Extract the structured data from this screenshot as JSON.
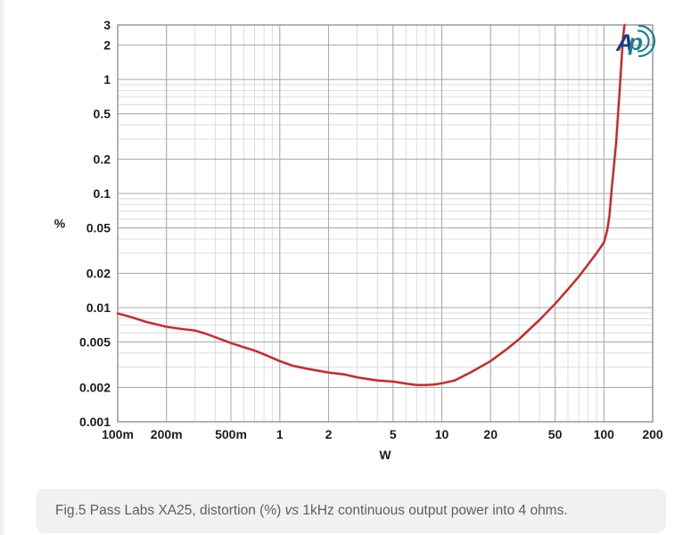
{
  "page": {
    "background": "#ffffff",
    "edge_strip_color": "#ededed"
  },
  "caption": {
    "prefix": "Fig.5 Pass Labs XA25, distortion (%) ",
    "italic": "vs",
    "suffix": " 1kHz continuous output power into 4 ohms.",
    "box_color": "#f1f1f2",
    "text_color": "#5b5f63"
  },
  "logo": {
    "name": "Audio Precision",
    "letter_a": "A",
    "letter_p": "p",
    "color_a": "#1a3e7e",
    "color_p": "#1f7e95"
  },
  "chart_data": {
    "type": "line",
    "title": "",
    "xlabel": "W",
    "ylabel": "%",
    "x_scale": "log",
    "y_scale": "log",
    "xlim": [
      0.1,
      200
    ],
    "ylim": [
      0.001,
      3
    ],
    "grid": "log major + minor, both axes",
    "legend": "none",
    "x_ticks": [
      {
        "v": 0.1,
        "label": "100m"
      },
      {
        "v": 0.2,
        "label": "200m"
      },
      {
        "v": 0.5,
        "label": "500m"
      },
      {
        "v": 1,
        "label": "1"
      },
      {
        "v": 2,
        "label": "2"
      },
      {
        "v": 5,
        "label": "5"
      },
      {
        "v": 10,
        "label": "10"
      },
      {
        "v": 20,
        "label": "20"
      },
      {
        "v": 50,
        "label": "50"
      },
      {
        "v": 100,
        "label": "100"
      },
      {
        "v": 200,
        "label": "200"
      }
    ],
    "y_ticks": [
      {
        "v": 3,
        "label": "3"
      },
      {
        "v": 2,
        "label": "2"
      },
      {
        "v": 1,
        "label": "1"
      },
      {
        "v": 0.5,
        "label": "0.5"
      },
      {
        "v": 0.2,
        "label": "0.2"
      },
      {
        "v": 0.1,
        "label": "0.1"
      },
      {
        "v": 0.05,
        "label": "0.05"
      },
      {
        "v": 0.02,
        "label": "0.02"
      },
      {
        "v": 0.01,
        "label": "0.01"
      },
      {
        "v": 0.005,
        "label": "0.005"
      },
      {
        "v": 0.002,
        "label": "0.002"
      },
      {
        "v": 0.001,
        "label": "0.001"
      }
    ],
    "series": [
      {
        "name": "THD+N vs continuous output power, 1kHz, 4 ohms",
        "color": "#b02a2a",
        "points": [
          [
            0.1,
            0.0089
          ],
          [
            0.12,
            0.0083
          ],
          [
            0.15,
            0.0075
          ],
          [
            0.2,
            0.0068
          ],
          [
            0.25,
            0.0065
          ],
          [
            0.3,
            0.0063
          ],
          [
            0.35,
            0.0059
          ],
          [
            0.4,
            0.0055
          ],
          [
            0.5,
            0.0049
          ],
          [
            0.6,
            0.0045
          ],
          [
            0.7,
            0.0042
          ],
          [
            0.8,
            0.0039
          ],
          [
            1,
            0.0034
          ],
          [
            1.2,
            0.0031
          ],
          [
            1.5,
            0.0029
          ],
          [
            2,
            0.0027
          ],
          [
            2.5,
            0.0026
          ],
          [
            3,
            0.00245
          ],
          [
            4,
            0.0023
          ],
          [
            5,
            0.00225
          ],
          [
            6,
            0.00216
          ],
          [
            7,
            0.0021
          ],
          [
            8,
            0.0021
          ],
          [
            9,
            0.00212
          ],
          [
            10,
            0.00217
          ],
          [
            12,
            0.0023
          ],
          [
            15,
            0.0027
          ],
          [
            20,
            0.0034
          ],
          [
            25,
            0.0043
          ],
          [
            30,
            0.0053
          ],
          [
            40,
            0.0078
          ],
          [
            50,
            0.0108
          ],
          [
            60,
            0.0145
          ],
          [
            70,
            0.0187
          ],
          [
            80,
            0.024
          ],
          [
            90,
            0.03
          ],
          [
            100,
            0.0372
          ],
          [
            105,
            0.048
          ],
          [
            108,
            0.063
          ],
          [
            112,
            0.113
          ],
          [
            119,
            0.277
          ],
          [
            126,
            0.93
          ],
          [
            131,
            2.28
          ],
          [
            134,
            3.0
          ]
        ]
      }
    ],
    "style": {
      "grid_minor_color": "#dcdcdc",
      "grid_major_color": "#a9a9a9",
      "frame_color": "#8a8a8a",
      "curve_halo_color": "#e59a9a",
      "tick_label_color": "#1c1c1c"
    }
  }
}
